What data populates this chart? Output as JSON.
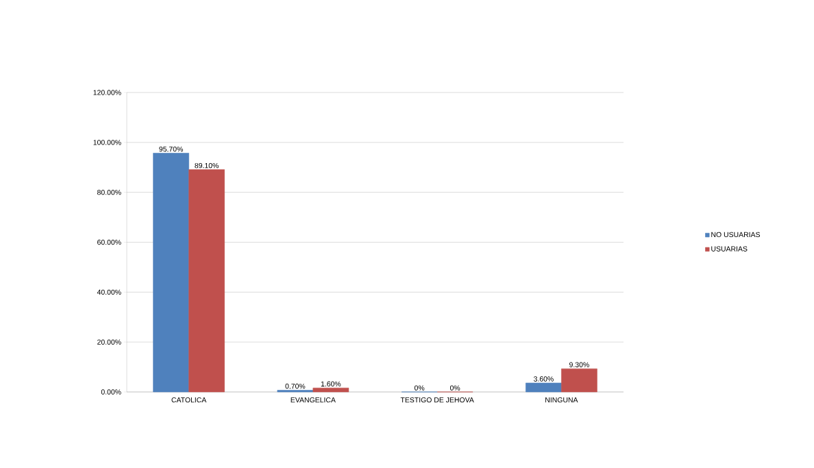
{
  "chart_data": {
    "type": "bar",
    "categories": [
      "CATOLICA",
      "EVANGELICA",
      "TESTIGO DE JEHOVA",
      "NINGUNA"
    ],
    "series": [
      {
        "name": "NO USUARIAS",
        "color": "#4f81bd",
        "values": [
          95.7,
          0.7,
          0,
          3.6
        ],
        "value_labels": [
          "95.70%",
          "0.70%",
          "0%",
          "3.60%"
        ]
      },
      {
        "name": "USUARIAS",
        "color": "#c0504d",
        "values": [
          89.1,
          1.6,
          0,
          9.3
        ],
        "value_labels": [
          "89.10%",
          "1.60%",
          "0%",
          "9.30%"
        ]
      }
    ],
    "ylim": [
      0,
      120
    ],
    "yticks": [
      {
        "value": 0,
        "label": "0.00%"
      },
      {
        "value": 20,
        "label": "20.00%"
      },
      {
        "value": 40,
        "label": "40.00%"
      },
      {
        "value": 60,
        "label": "60.00%"
      },
      {
        "value": 80,
        "label": "80.00%"
      },
      {
        "value": 100,
        "label": "100.00%"
      },
      {
        "value": 120,
        "label": "120.00%"
      }
    ],
    "grid": "y",
    "legend": "right"
  }
}
